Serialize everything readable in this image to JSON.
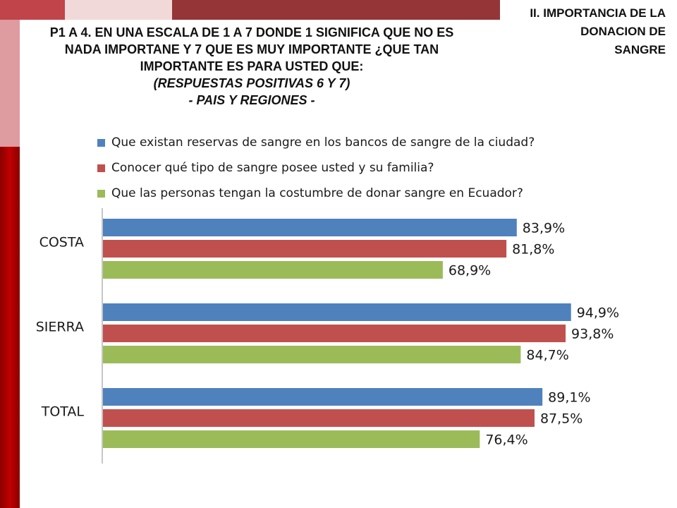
{
  "header": {
    "question_lines": [
      "P1 A 4. EN UNA ESCALA DE 1 A 7 DONDE 1 SIGNIFICA QUE NO ES",
      "NADA IMPORTANE Y 7 QUE ES MUY IMPORTANTE ¿QUE TAN",
      "IMPORTANTE ES PARA USTED QUE:"
    ],
    "subtitle_lines": [
      "(RESPUESTAS POSITIVAS 6 Y 7)",
      "- PAIS Y REGIONES -"
    ],
    "section_lines": [
      "II. IMPORTANCIA DE LA",
      "DONACION DE",
      "SANGRE"
    ]
  },
  "colors": {
    "series_blue": "#4f81bd",
    "series_red": "#c0504d",
    "series_green": "#9bbb59",
    "axis": "#8c8c8c"
  },
  "chart_data": {
    "type": "bar",
    "orientation": "horizontal",
    "categories": [
      "COSTA",
      "SIERRA",
      "TOTAL"
    ],
    "series": [
      {
        "name": "Que existan reservas de sangre en los bancos de sangre de la ciudad?",
        "values": [
          83.9,
          94.9,
          89.1
        ],
        "labels": [
          "83,9%",
          "94,9%",
          "89,1%"
        ],
        "color": "#4f81bd"
      },
      {
        "name": "Conocer qué tipo de sangre posee usted y su familia?",
        "values": [
          81.8,
          93.8,
          87.5
        ],
        "labels": [
          "81,8%",
          "93,8%",
          "87,5%"
        ],
        "color": "#c0504d"
      },
      {
        "name": "Que las personas tengan la costumbre de donar sangre en Ecuador?",
        "values": [
          68.9,
          84.7,
          76.4
        ],
        "labels": [
          "68,9%",
          "84,7%",
          "76,4%"
        ],
        "color": "#9bbb59"
      }
    ],
    "xlim": [
      0,
      100
    ],
    "legend": "top",
    "grid": false
  }
}
